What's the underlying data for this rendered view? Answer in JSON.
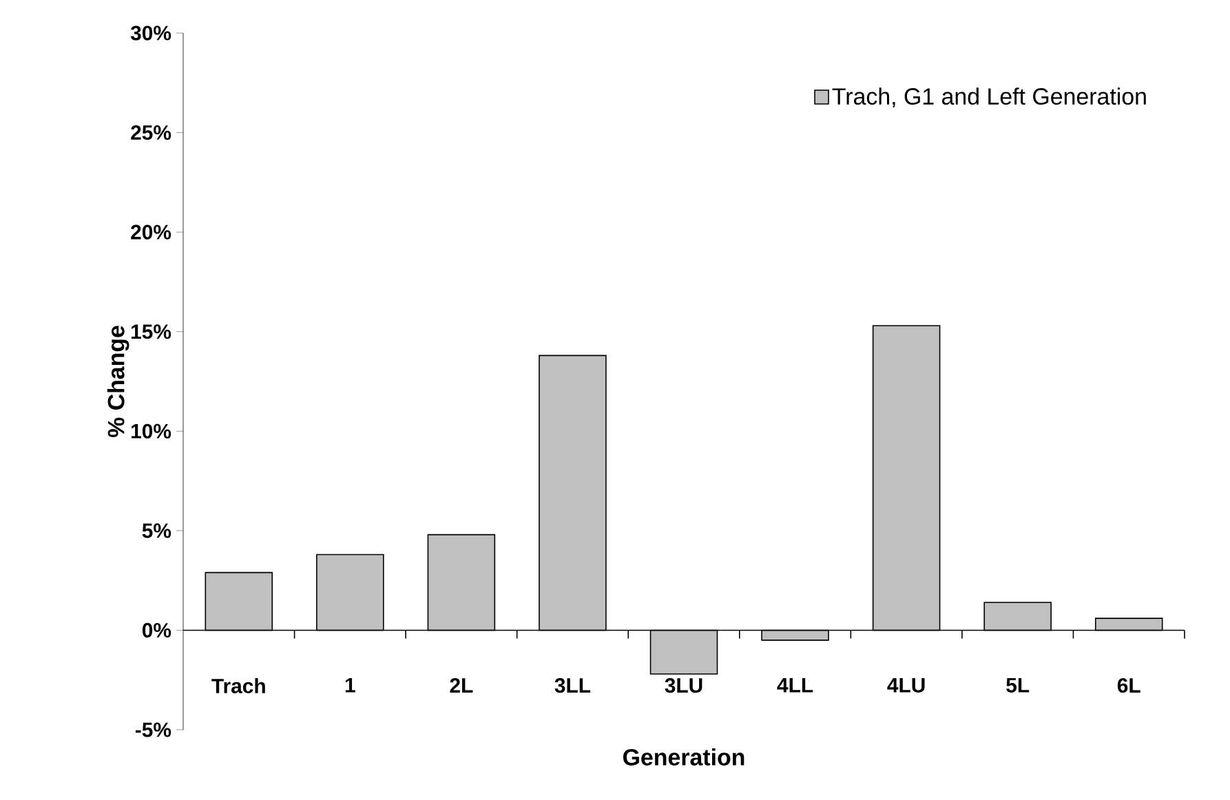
{
  "chart_data": {
    "type": "bar",
    "xlabel": "Generation",
    "ylabel": "% Change",
    "categories": [
      "Trach",
      "1",
      "2L",
      "3LL",
      "3LU",
      "4LL",
      "4LU",
      "5L",
      "6L"
    ],
    "series": [
      {
        "name": "Trach, G1 and Left Generation",
        "color": "#c0c0c0",
        "values": [
          2.9,
          3.8,
          4.8,
          13.8,
          -2.2,
          -0.5,
          15.3,
          1.4,
          0.6
        ]
      }
    ],
    "ylim": [
      -5,
      30
    ],
    "yticks": [
      {
        "value": -5,
        "label": "-5%"
      },
      {
        "value": 0,
        "label": "0%"
      },
      {
        "value": 5,
        "label": "5%"
      },
      {
        "value": 10,
        "label": "10%"
      },
      {
        "value": 15,
        "label": "15%"
      },
      {
        "value": 20,
        "label": "20%"
      },
      {
        "value": 25,
        "label": "25%"
      },
      {
        "value": 30,
        "label": "30%"
      }
    ],
    "legend": "top right"
  }
}
